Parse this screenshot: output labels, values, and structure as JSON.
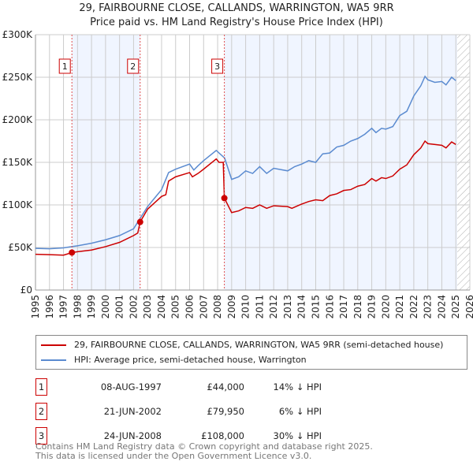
{
  "chart_data": {
    "type": "line",
    "title": "29, FAIRBOURNE CLOSE, CALLANDS, WARRINGTON, WA5 9RR",
    "subtitle": "Price paid vs. HM Land Registry's House Price Index (HPI)",
    "xlim": [
      1995,
      2026
    ],
    "ylim": [
      0,
      300000
    ],
    "yticks": [
      {
        "v": 0,
        "label": "£0"
      },
      {
        "v": 50000,
        "label": "£50K"
      },
      {
        "v": 100000,
        "label": "£100K"
      },
      {
        "v": 150000,
        "label": "£150K"
      },
      {
        "v": 200000,
        "label": "£200K"
      },
      {
        "v": 250000,
        "label": "£250K"
      },
      {
        "v": 300000,
        "label": "£300K"
      }
    ],
    "xticks": [
      1995,
      1996,
      1997,
      1998,
      1999,
      2000,
      2001,
      2002,
      2003,
      2004,
      2005,
      2006,
      2007,
      2008,
      2009,
      2010,
      2011,
      2012,
      2013,
      2014,
      2015,
      2016,
      2017,
      2018,
      2019,
      2020,
      2021,
      2022,
      2023,
      2024,
      2025,
      2026
    ],
    "data_end": 2025.1,
    "grid": true,
    "series": [
      {
        "name": "29, FAIRBOURNE CLOSE, CALLANDS, WARRINGTON, WA5 9RR (semi-detached house)",
        "color": "#cc0000",
        "x": [
          1995,
          1996,
          1997,
          1997.6,
          1998,
          1999,
          2000,
          2001,
          2002,
          2002.3,
          2002.47,
          2003,
          2004,
          2004.3,
          2004.5,
          2005,
          2006,
          2006.2,
          2006.6,
          2007,
          2007.9,
          2008.1,
          2008.4,
          2008.48,
          2009,
          2009.5,
          2010,
          2010.5,
          2011,
          2011.5,
          2012,
          2013,
          2013.3,
          2014,
          2014.5,
          2015,
          2015.5,
          2016,
          2016.5,
          2017,
          2017.5,
          2018,
          2018.5,
          2019,
          2019.3,
          2019.7,
          2020,
          2020.5,
          2021,
          2021.5,
          2022,
          2022.5,
          2022.8,
          2023,
          2024,
          2024.3,
          2024.7,
          2025
        ],
        "y": [
          42000,
          41500,
          41000,
          44000,
          45000,
          47000,
          51000,
          56000,
          64000,
          67000,
          79950,
          95000,
          110000,
          112000,
          128000,
          133000,
          138000,
          133000,
          137000,
          142000,
          154000,
          150000,
          150000,
          108000,
          91000,
          93000,
          97000,
          96000,
          100000,
          96000,
          99000,
          98000,
          96000,
          101000,
          104000,
          106000,
          105000,
          111000,
          113000,
          117000,
          118000,
          122000,
          124000,
          131000,
          128000,
          132000,
          131000,
          134000,
          142000,
          147000,
          159000,
          167000,
          175000,
          172000,
          170000,
          167000,
          174000,
          171000
        ]
      },
      {
        "name": "HPI: Average price, semi-detached house, Warrington",
        "color": "#5b8bd0",
        "x": [
          1995,
          1996,
          1997,
          1997.6,
          1998,
          1999,
          2000,
          2001,
          2002,
          2002.5,
          2003,
          2003.5,
          2004,
          2004.5,
          2005,
          2006,
          2006.3,
          2006.6,
          2007,
          2007.9,
          2008.5,
          2009,
          2009.5,
          2010,
          2010.5,
          2011,
          2011.5,
          2012,
          2013,
          2013.5,
          2014,
          2014.5,
          2015,
          2015.5,
          2016,
          2016.5,
          2017,
          2017.5,
          2018,
          2018.5,
          2019,
          2019.3,
          2019.7,
          2020,
          2020.5,
          2021,
          2021.5,
          2022,
          2022.5,
          2022.8,
          2023,
          2023.5,
          2024,
          2024.3,
          2024.7,
          2025
        ],
        "y": [
          49000,
          48500,
          49500,
          51000,
          52000,
          55000,
          59000,
          64000,
          72000,
          85000,
          98000,
          108000,
          118000,
          138000,
          142000,
          148000,
          141000,
          146000,
          152000,
          164000,
          155000,
          130000,
          133000,
          140000,
          137000,
          145000,
          137000,
          143000,
          140000,
          145000,
          148000,
          152000,
          150000,
          160000,
          161000,
          168000,
          170000,
          175000,
          178000,
          183000,
          190000,
          185000,
          190000,
          189000,
          192000,
          205000,
          210000,
          228000,
          240000,
          251000,
          247000,
          244000,
          245000,
          241000,
          250000,
          246000
        ]
      }
    ],
    "sales": [
      {
        "n": "1",
        "x": 1997.6,
        "date": "08-AUG-1997",
        "price": "£44,000",
        "value": 44000,
        "hpi": "14% ↓ HPI"
      },
      {
        "n": "2",
        "x": 2002.47,
        "date": "21-JUN-2002",
        "price": "£79,950",
        "value": 79950,
        "hpi": "6% ↓ HPI"
      },
      {
        "n": "3",
        "x": 2008.48,
        "date": "24-JUN-2008",
        "price": "£108,000",
        "value": 108000,
        "hpi": "30% ↓ HPI"
      }
    ]
  },
  "footer": {
    "line1": "Contains HM Land Registry data © Crown copyright and database right 2025.",
    "line2": "This data is licensed under the Open Government Licence v3.0."
  }
}
